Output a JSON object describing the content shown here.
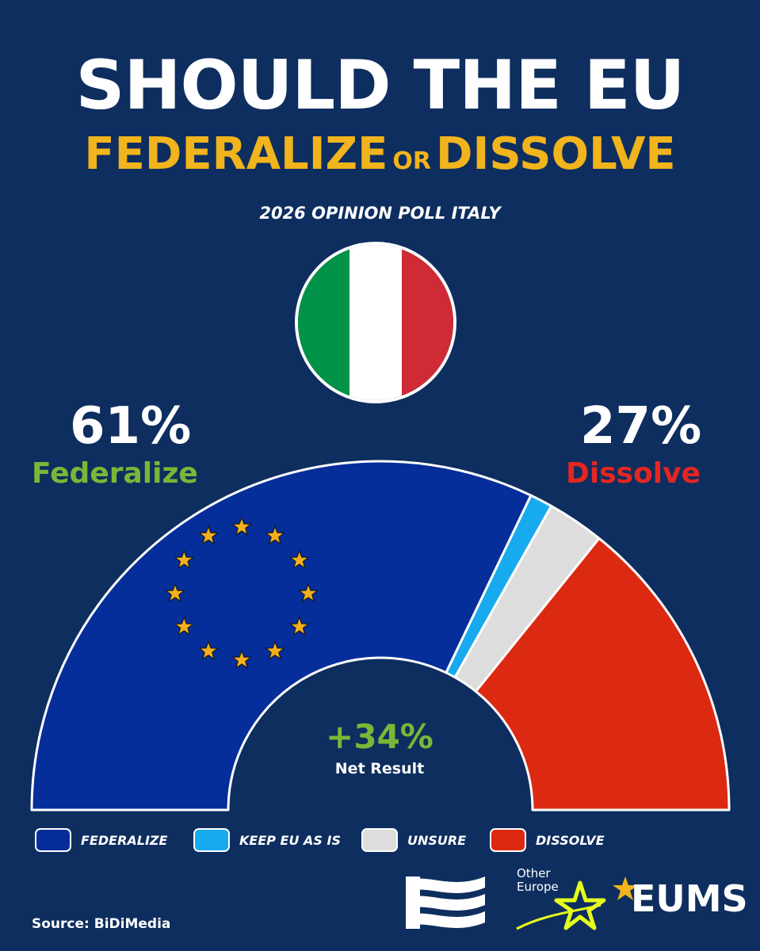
{
  "title": {
    "line1": "SHOULD THE EU",
    "option_a": "FEDERALIZE",
    "connector": "OR",
    "option_b": "DISSOLVE"
  },
  "subtitle": "2026 OPINION POLL ITALY",
  "flag": {
    "colors": [
      "#009246",
      "#ffffff",
      "#ce2b37"
    ]
  },
  "chart_data": {
    "type": "pie",
    "variant": "semicircle-donut",
    "title": "SHOULD THE EU FEDERALIZE OR DISSOLVE",
    "subtitle": "2026 OPINION POLL ITALY",
    "slices": [
      {
        "label": "FEDERALIZE",
        "value": 61,
        "color": "#052e9b"
      },
      {
        "label": "KEEP EU AS IS",
        "value": 2,
        "color": "#18aaee"
      },
      {
        "label": "UNSURE",
        "value": 5,
        "color": "#dddddd"
      },
      {
        "label": "DISSOLVE",
        "value": 27,
        "color": "#dc2a12"
      }
    ],
    "headline": {
      "left_value": "61%",
      "left_label": "Federalize",
      "left_color": "#7ab738",
      "right_value": "27%",
      "right_label": "Dissolve",
      "right_color": "#e52622"
    },
    "center": {
      "value": "+34%",
      "label": "Net Result",
      "value_color": "#7ab738"
    },
    "legend_placement": "bottom"
  },
  "source": "Source: BiDiMedia",
  "logos": {
    "other_europe_line1": "Other",
    "other_europe_line2": "Europe",
    "eums": "EUMS",
    "star_color": "#f1b41c",
    "oe_star_color": "#e6ff1a"
  }
}
